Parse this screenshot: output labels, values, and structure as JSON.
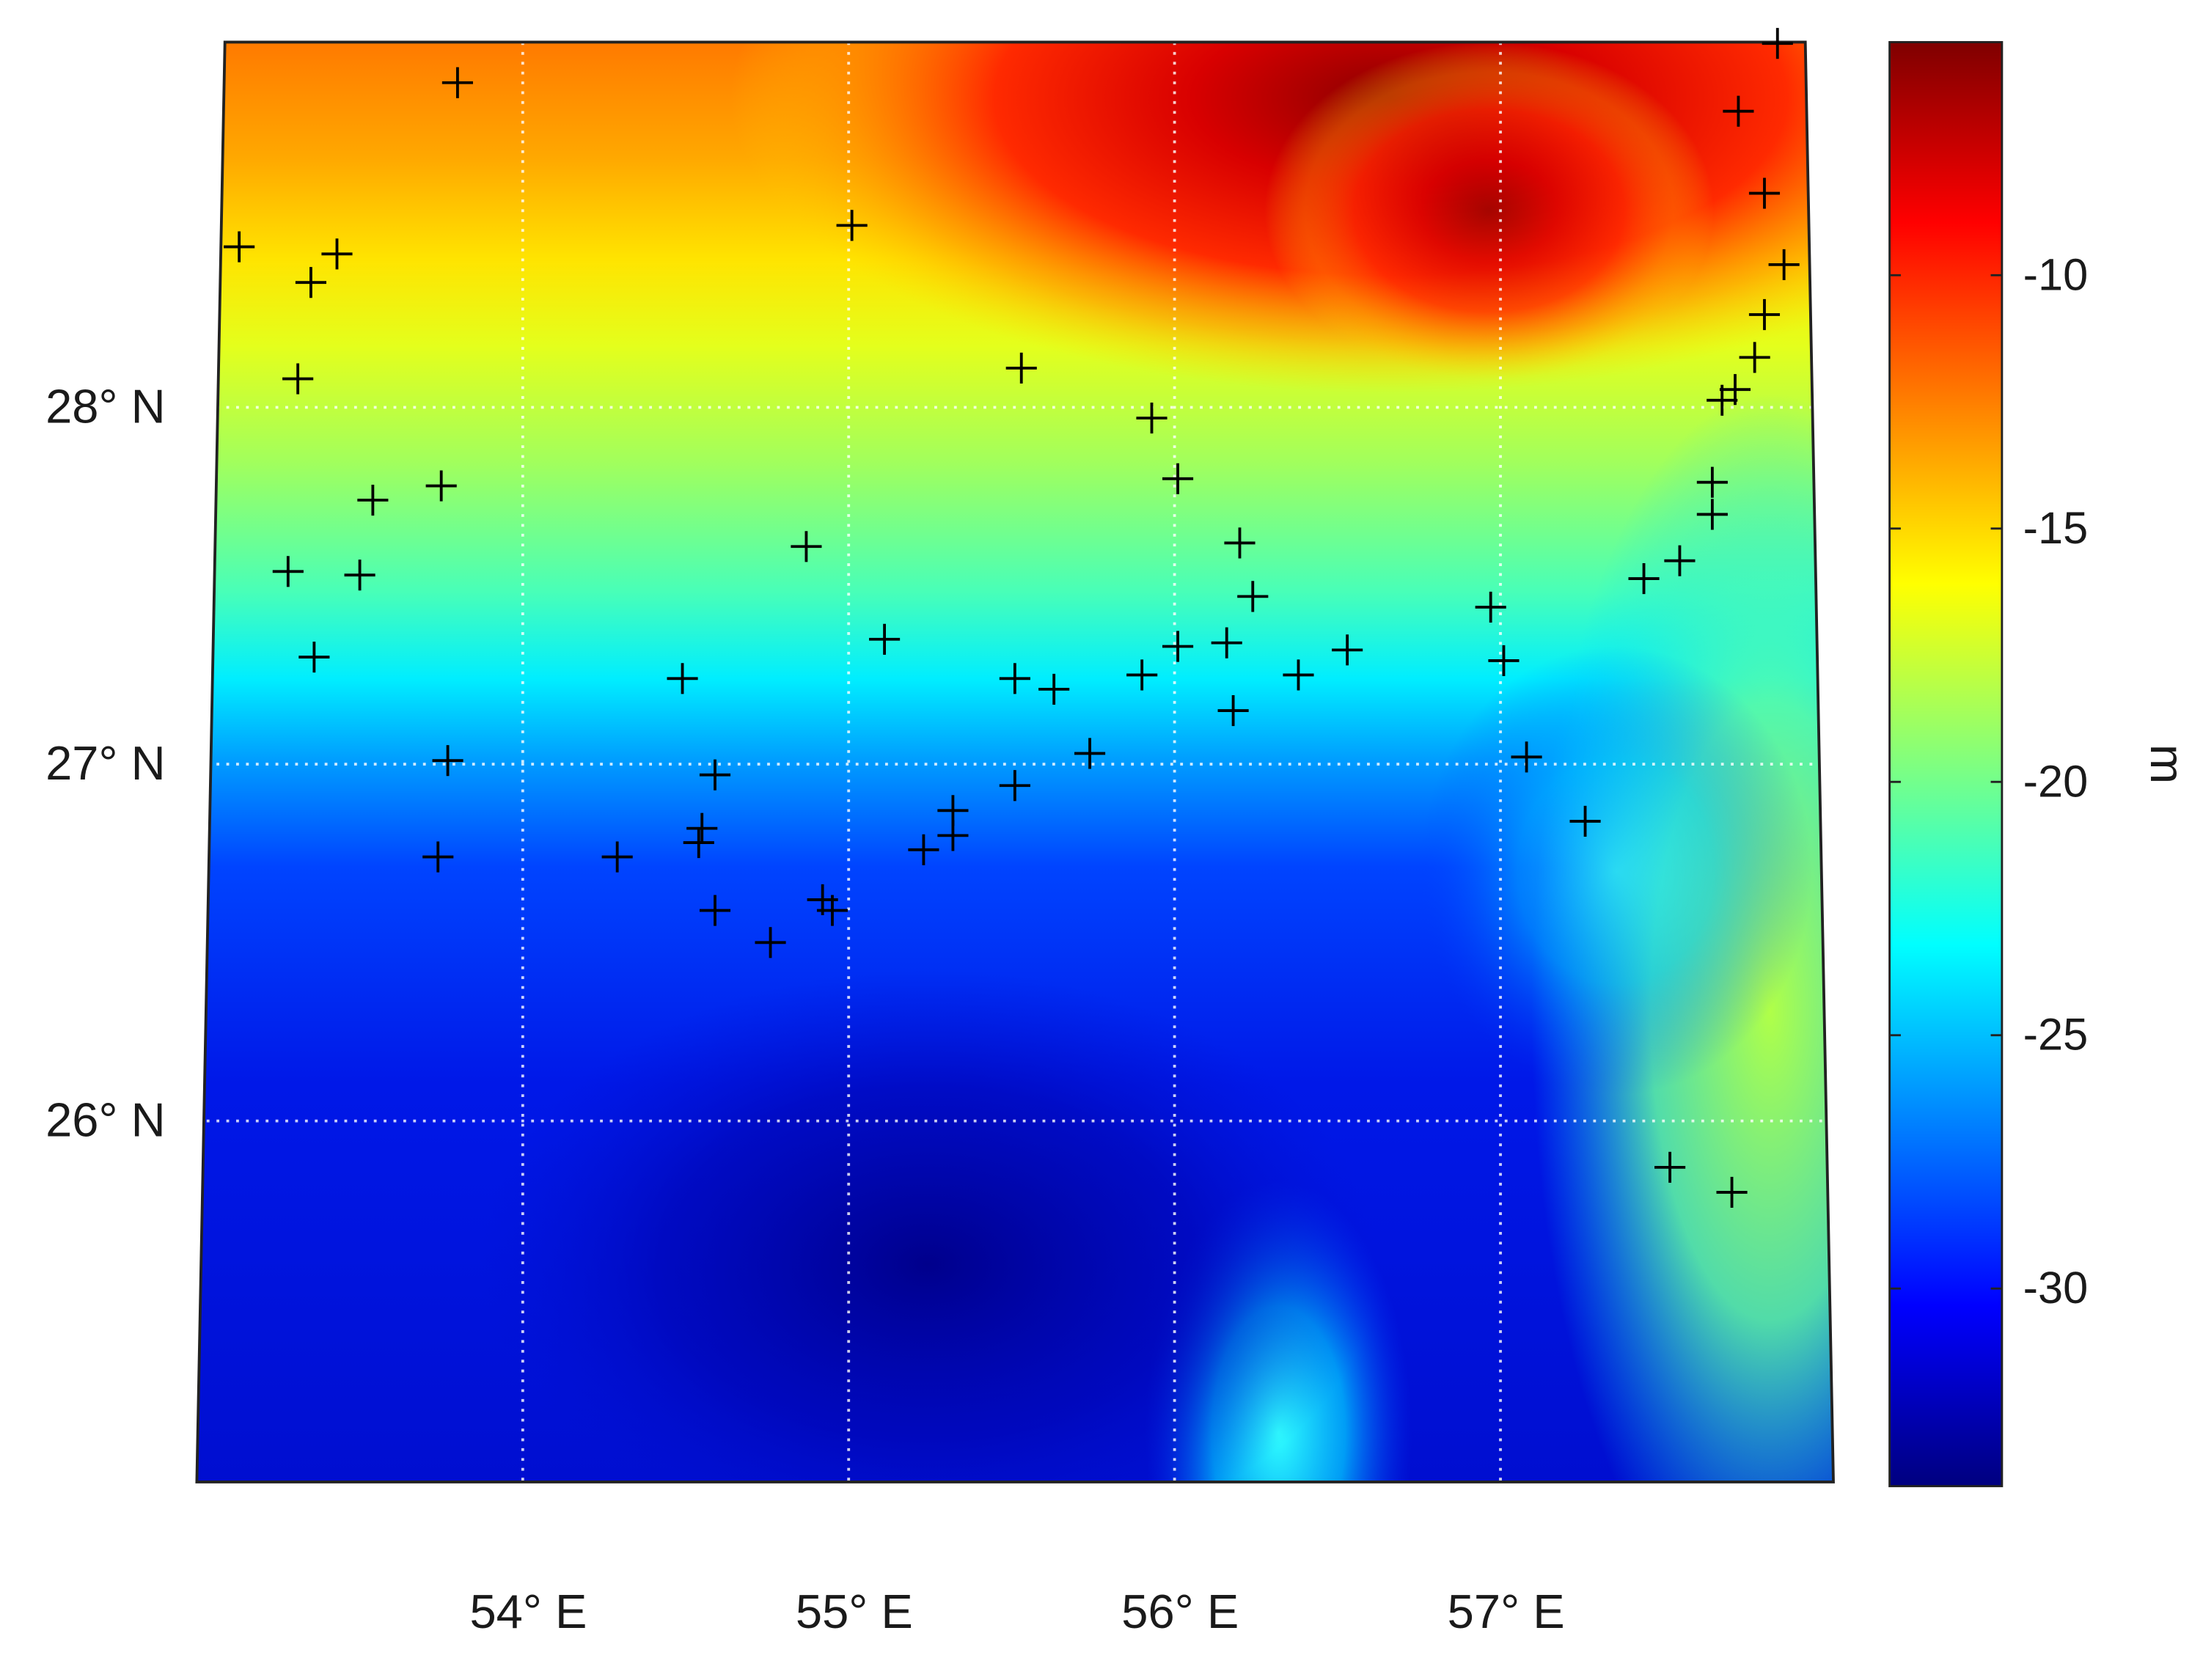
{
  "chart_data": {
    "type": "scatter",
    "marker": "+",
    "color": "#000000",
    "grid": true,
    "x": [
      53.8,
      53.13,
      53.35,
      53.43,
      53.31,
      55.01,
      57.85,
      57.73,
      57.81,
      57.87,
      57.81,
      57.78,
      57.68,
      57.72,
      55.53,
      55.93,
      56.01,
      53.54,
      53.75,
      53.28,
      53.5,
      54.87,
      53.36,
      56.2,
      56.24,
      57.65,
      57.65,
      57.55,
      57.44,
      55.11,
      54.49,
      55.51,
      55.63,
      55.9,
      56.01,
      56.16,
      56.38,
      56.53,
      56.18,
      56.97,
      57.01,
      57.08,
      57.26,
      55.74,
      53.77,
      54.59,
      55.51,
      53.74,
      54.29,
      54.54,
      54.55,
      54.59,
      54.76,
      54.92,
      54.95,
      55.23,
      55.32,
      55.32,
      57.52,
      57.71
    ],
    "y": [
      28.91,
      28.45,
      28.35,
      28.43,
      28.08,
      28.51,
      29.02,
      28.83,
      28.6,
      28.4,
      28.26,
      28.14,
      28.02,
      28.05,
      28.11,
      27.97,
      27.8,
      27.74,
      27.78,
      27.54,
      27.53,
      27.61,
      27.3,
      27.62,
      27.47,
      27.79,
      27.7,
      27.57,
      27.52,
      27.35,
      27.24,
      27.24,
      27.21,
      27.25,
      27.33,
      27.34,
      27.25,
      27.32,
      27.15,
      27.44,
      27.29,
      27.02,
      26.84,
      27.03,
      27.01,
      26.97,
      26.94,
      26.74,
      26.74,
      26.78,
      26.82,
      26.59,
      26.5,
      26.62,
      26.59,
      26.76,
      26.8,
      26.87,
      25.87,
      25.8
    ],
    "xlim": [
      53,
      58
    ],
    "ylim": [
      25,
      29
    ],
    "xticks": [
      {
        "value": 54,
        "label": "54° E"
      },
      {
        "value": 55,
        "label": "55° E"
      },
      {
        "value": 56,
        "label": "56° E"
      },
      {
        "value": 57,
        "label": "57° E"
      }
    ],
    "yticks": [
      {
        "value": 26,
        "label": "26° N"
      },
      {
        "value": 27,
        "label": "27° N"
      },
      {
        "value": 28,
        "label": "28° N"
      }
    ],
    "colorbar": {
      "label": "m",
      "colormap": "jet",
      "clim": [
        -33.9,
        -5.4
      ],
      "ticks": [
        -30,
        -25,
        -20,
        -15,
        -10
      ]
    }
  }
}
